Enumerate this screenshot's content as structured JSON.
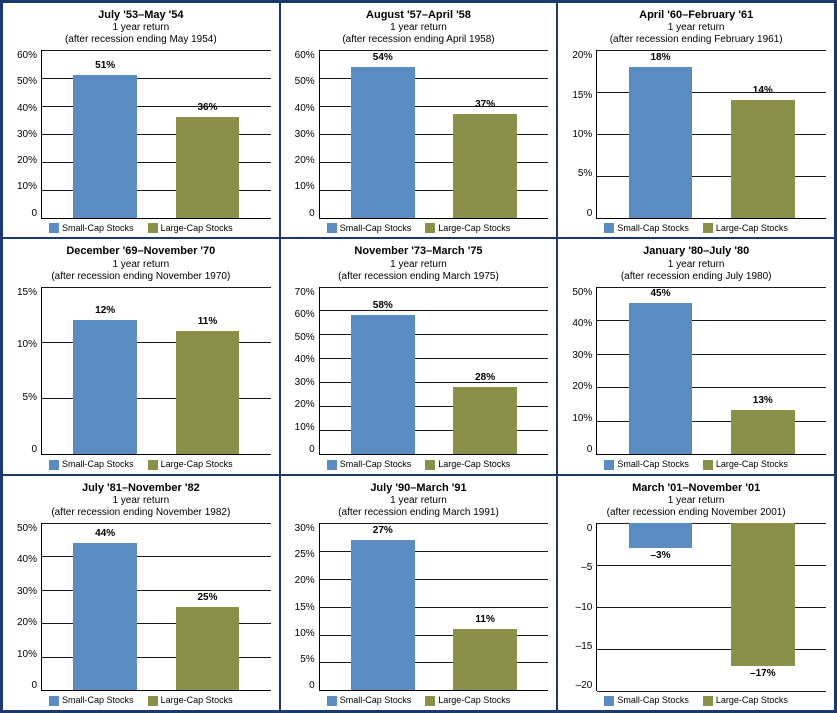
{
  "colors": {
    "small": "#5a8cc2",
    "large": "#8a8f4a",
    "border": "#1a3a6e",
    "line": "#000000"
  },
  "legend": {
    "small": "Small-Cap Stocks",
    "large": "Large-Cap Stocks"
  },
  "charts": [
    {
      "title": "July '53–May '54",
      "sub1": "1 year return",
      "sub2": "(after recession ending May 1954)",
      "ymin": 0,
      "ymax": 60,
      "ystep": 10,
      "suffix": "%",
      "bars": [
        {
          "label": "51%",
          "value": 51,
          "key": "small"
        },
        {
          "label": "36%",
          "value": 36,
          "key": "large"
        }
      ]
    },
    {
      "title": "August '57–April '58",
      "sub1": "1 year return",
      "sub2": "(after recession ending April 1958)",
      "ymin": 0,
      "ymax": 60,
      "ystep": 10,
      "suffix": "%",
      "bars": [
        {
          "label": "54%",
          "value": 54,
          "key": "small"
        },
        {
          "label": "37%",
          "value": 37,
          "key": "large"
        }
      ]
    },
    {
      "title": "April '60–February '61",
      "sub1": "1 year return",
      "sub2": "(after recession ending February 1961)",
      "ymin": 0,
      "ymax": 20,
      "ystep": 5,
      "suffix": "%",
      "bars": [
        {
          "label": "18%",
          "value": 18,
          "key": "small"
        },
        {
          "label": "14%",
          "value": 14,
          "key": "large"
        }
      ]
    },
    {
      "title": "December '69–November '70",
      "sub1": "1 year return",
      "sub2": "(after recession ending November 1970)",
      "ymin": 0,
      "ymax": 15,
      "ystep": 5,
      "suffix": "%",
      "bars": [
        {
          "label": "12%",
          "value": 12,
          "key": "small"
        },
        {
          "label": "11%",
          "value": 11,
          "key": "large"
        }
      ]
    },
    {
      "title": "November '73–March '75",
      "sub1": "1 year return",
      "sub2": "(after recession ending March 1975)",
      "ymin": 0,
      "ymax": 70,
      "ystep": 10,
      "suffix": "%",
      "bars": [
        {
          "label": "58%",
          "value": 58,
          "key": "small"
        },
        {
          "label": "28%",
          "value": 28,
          "key": "large"
        }
      ]
    },
    {
      "title": "January '80–July '80",
      "sub1": "1 year return",
      "sub2": "(after recession ending July 1980)",
      "ymin": 0,
      "ymax": 50,
      "ystep": 10,
      "suffix": "%",
      "bars": [
        {
          "label": "45%",
          "value": 45,
          "key": "small"
        },
        {
          "label": "13%",
          "value": 13,
          "key": "large"
        }
      ]
    },
    {
      "title": "July '81–November '82",
      "sub1": "1 year return",
      "sub2": "(after recession ending November 1982)",
      "ymin": 0,
      "ymax": 50,
      "ystep": 10,
      "suffix": "%",
      "bars": [
        {
          "label": "44%",
          "value": 44,
          "key": "small"
        },
        {
          "label": "25%",
          "value": 25,
          "key": "large"
        }
      ]
    },
    {
      "title": "July '90–March '91",
      "sub1": "1 year return",
      "sub2": "(after recession ending March 1991)",
      "ymin": 0,
      "ymax": 30,
      "ystep": 5,
      "suffix": "%",
      "bars": [
        {
          "label": "27%",
          "value": 27,
          "key": "small"
        },
        {
          "label": "11%",
          "value": 11,
          "key": "large"
        }
      ]
    },
    {
      "title": "March '01–November '01",
      "sub1": "1 year return",
      "sub2": "(after recession ending November 2001)",
      "ymin": -20,
      "ymax": 0,
      "ystep": 5,
      "suffix": "",
      "negative": true,
      "bars": [
        {
          "label": "–3%",
          "value": -3,
          "key": "small"
        },
        {
          "label": "–17%",
          "value": -17,
          "key": "large"
        }
      ]
    }
  ]
}
